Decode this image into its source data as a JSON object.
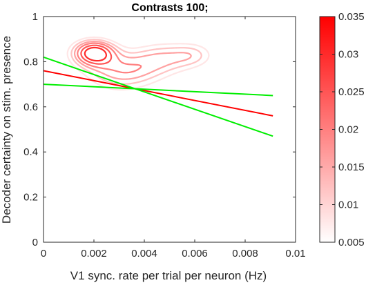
{
  "chart_data": {
    "type": "contour",
    "title": "Contrasts 100;",
    "xlabel": "V1 sync. rate per trial per neuron (Hz)",
    "ylabel": "Decoder certainty on stim. presence",
    "xlim": [
      0,
      0.01
    ],
    "ylim": [
      0,
      1
    ],
    "xticks": [
      "0",
      "0.002",
      "0.004",
      "0.006",
      "0.008",
      "0.01"
    ],
    "yticks": [
      "0",
      "0.2",
      "0.4",
      "0.6",
      "0.8",
      "1"
    ],
    "grid": false,
    "colorbar": {
      "range": [
        0.005,
        0.035
      ],
      "ticks": [
        "0.005",
        "0.01",
        "0.015",
        "0.02",
        "0.025",
        "0.03",
        "0.035"
      ],
      "color_low": "#ffffff",
      "color_high": "#ff0000"
    },
    "density_levels": [
      0.008,
      0.012,
      0.016,
      0.02,
      0.025,
      0.03
    ],
    "fit_line": {
      "color": "#ff0000",
      "x": [
        0,
        0.0091
      ],
      "y": [
        0.76,
        0.56
      ]
    },
    "confidence_bounds": {
      "color": "#00ee00",
      "upper": {
        "x": [
          0,
          0.0091
        ],
        "y": [
          0.82,
          0.47
        ]
      },
      "lower": {
        "x": [
          0,
          0.0091
        ],
        "y": [
          0.7,
          0.65
        ]
      }
    }
  }
}
